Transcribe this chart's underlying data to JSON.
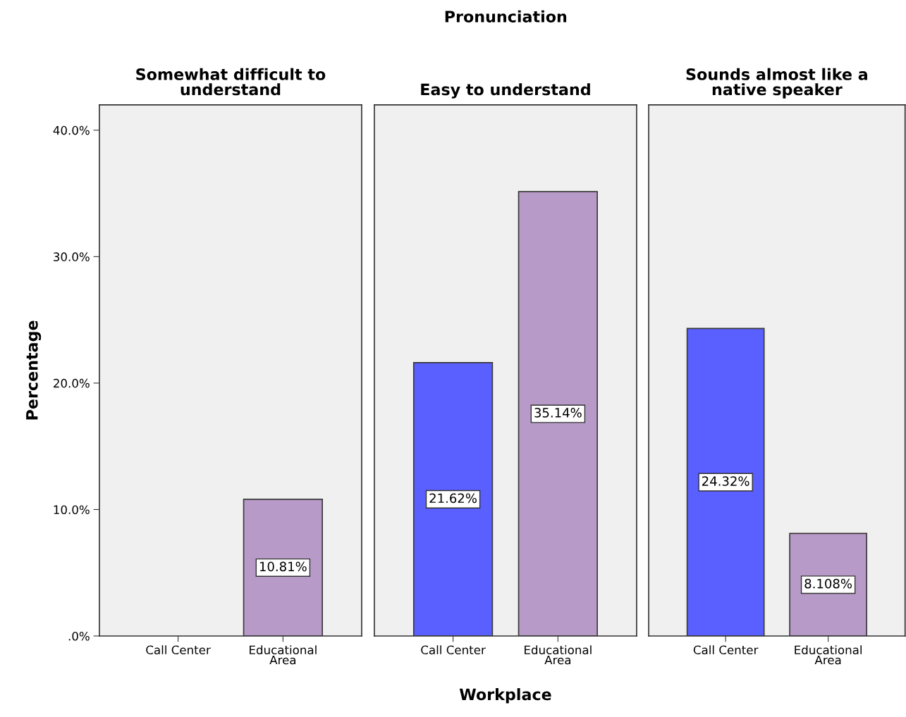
{
  "chart_data": [
    {
      "type": "bar",
      "title": "Somewhat difficult to\nunderstand",
      "ylabel": "Percentage",
      "categories": [
        "Call Center",
        "Educational\nArea"
      ],
      "values": [
        null,
        10.81
      ],
      "colors": [
        "#5a5fff",
        "#b89ac8"
      ],
      "value_labels": [
        null,
        "10.81%"
      ],
      "ylim": [
        0,
        42
      ],
      "yticks": [
        {
          "value": 0,
          "label": ".0%"
        },
        {
          "value": 10,
          "label": "10.0%"
        },
        {
          "value": 20,
          "label": "20.0%"
        },
        {
          "value": 30,
          "label": "30.0%"
        },
        {
          "value": 40,
          "label": "40.0%"
        }
      ],
      "grid": false,
      "legend": false
    },
    {
      "type": "bar",
      "title": "Easy to understand",
      "xlabel": "Workplace",
      "annotations": [
        "Pronunciation"
      ],
      "categories": [
        "Call Center",
        "Educational\nArea"
      ],
      "values": [
        21.62,
        35.14
      ],
      "colors": [
        "#5a5fff",
        "#b89ac8"
      ],
      "value_labels": [
        "21.62%",
        "35.14%"
      ],
      "ylim": [
        0,
        42
      ],
      "tick_labels": "x",
      "grid": false,
      "legend": false
    },
    {
      "type": "bar",
      "title": "Sounds almost like a\nnative speaker",
      "categories": [
        "Call Center",
        "Educational\nArea"
      ],
      "values": [
        24.32,
        8.108
      ],
      "colors": [
        "#5a5fff",
        "#b89ac8"
      ],
      "value_labels": [
        "24.32%",
        "8.108%"
      ],
      "ylim": [
        0,
        42
      ],
      "tick_labels": "x",
      "grid": false,
      "legend": false
    }
  ]
}
